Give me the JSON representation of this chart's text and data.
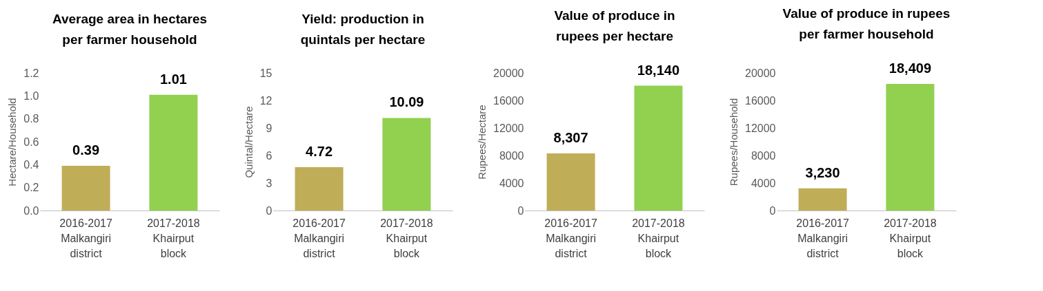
{
  "chart_data": [
    {
      "type": "bar",
      "title": "Average area in hectares per farmer household",
      "ylabel": "Hectare/Household",
      "categories": [
        "2016-2017\nMalkangiri\ndistrict",
        "2017-2018\nKhairput\nblock"
      ],
      "values": [
        0.39,
        1.01
      ],
      "colors": [
        "#c0ad57",
        "#92d050"
      ],
      "value_labels": [
        "0.39",
        "1.01"
      ],
      "ylim": [
        0,
        1.2
      ],
      "yticks": [
        {
          "value": 0,
          "label": "0.0"
        },
        {
          "value": 0.2,
          "label": "0.2"
        },
        {
          "value": 0.4,
          "label": "0.4"
        },
        {
          "value": 0.6,
          "label": "0.6"
        },
        {
          "value": 0.8,
          "label": "0.8"
        },
        {
          "value": 1,
          "label": "1.0"
        },
        {
          "value": 1.2,
          "label": "1.2"
        }
      ],
      "grid": false
    },
    {
      "type": "bar",
      "title": "Yield: production in quintals per hectare",
      "ylabel": "Quintal/Hectare",
      "categories": [
        "2016-2017\nMalkangiri\ndistrict",
        "2017-2018\nKhairput\nblock"
      ],
      "values": [
        4.72,
        10.09
      ],
      "colors": [
        "#c0ad57",
        "#92d050"
      ],
      "value_labels": [
        "4.72",
        "10.09"
      ],
      "ylim": [
        0,
        15
      ],
      "yticks": [
        0,
        3,
        6,
        9,
        12,
        15
      ],
      "grid": false
    },
    {
      "type": "bar",
      "title": "Value of produce in rupees per hectare",
      "ylabel": "Rupees/Hectare",
      "categories": [
        "2016-2017\nMalkangiri\ndistrict",
        "2017-2018\nKhairput\nblock"
      ],
      "values": [
        8307,
        18140
      ],
      "colors": [
        "#c0ad57",
        "#92d050"
      ],
      "value_labels": [
        "8,307",
        "18,140"
      ],
      "ylim": [
        0,
        20000
      ],
      "yticks": [
        0,
        4000,
        8000,
        12000,
        16000,
        20000
      ],
      "grid": false
    },
    {
      "type": "bar",
      "title": "Value of produce in rupees per farmer household",
      "ylabel": "Rupees/Household",
      "categories": [
        "2016-2017\nMalkangiri\ndistrict",
        "2017-2018\nKhairput\nblock"
      ],
      "values": [
        3230,
        18409
      ],
      "colors": [
        "#c0ad57",
        "#92d050"
      ],
      "value_labels": [
        "3,230",
        "18,409"
      ],
      "ylim": [
        0,
        20000
      ],
      "yticks": [
        0,
        4000,
        8000,
        12000,
        16000,
        20000
      ],
      "grid": false
    }
  ]
}
